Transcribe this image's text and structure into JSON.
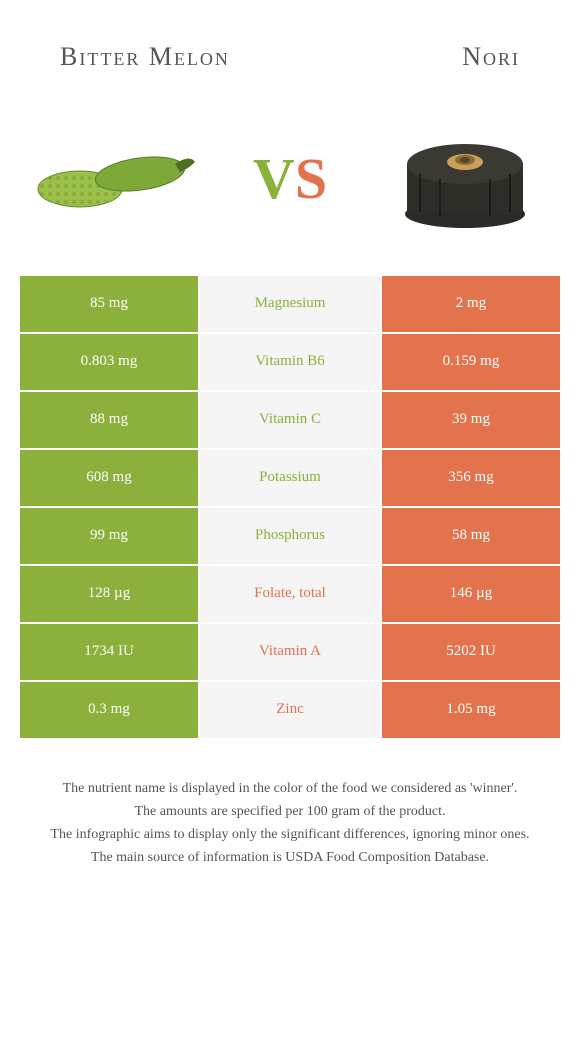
{
  "header": {
    "left": "Bitter Melon",
    "right": "Nori"
  },
  "vs": {
    "v": "V",
    "s": "S"
  },
  "colors": {
    "green": "#8bb13c",
    "orange": "#e2734c",
    "mid_bg": "#f5f5f5"
  },
  "rows": [
    {
      "left": "85 mg",
      "nutrient": "Magnesium",
      "right": "2 mg",
      "winner": "left"
    },
    {
      "left": "0.803 mg",
      "nutrient": "Vitamin B6",
      "right": "0.159 mg",
      "winner": "left"
    },
    {
      "left": "88 mg",
      "nutrient": "Vitamin C",
      "right": "39 mg",
      "winner": "left"
    },
    {
      "left": "608 mg",
      "nutrient": "Potassium",
      "right": "356 mg",
      "winner": "left"
    },
    {
      "left": "99 mg",
      "nutrient": "Phosphorus",
      "right": "58 mg",
      "winner": "left"
    },
    {
      "left": "128 µg",
      "nutrient": "Folate, total",
      "right": "146 µg",
      "winner": "right"
    },
    {
      "left": "1734 IU",
      "nutrient": "Vitamin A",
      "right": "5202 IU",
      "winner": "right"
    },
    {
      "left": "0.3 mg",
      "nutrient": "Zinc",
      "right": "1.05 mg",
      "winner": "right"
    }
  ],
  "footer": {
    "line1": "The nutrient name is displayed in the color of the food we considered as 'winner'.",
    "line2": "The amounts are specified per 100 gram of the product.",
    "line3": "The infographic aims to display only the significant differences, ignoring minor ones.",
    "line4": "The main source of information is USDA Food Composition Database."
  }
}
